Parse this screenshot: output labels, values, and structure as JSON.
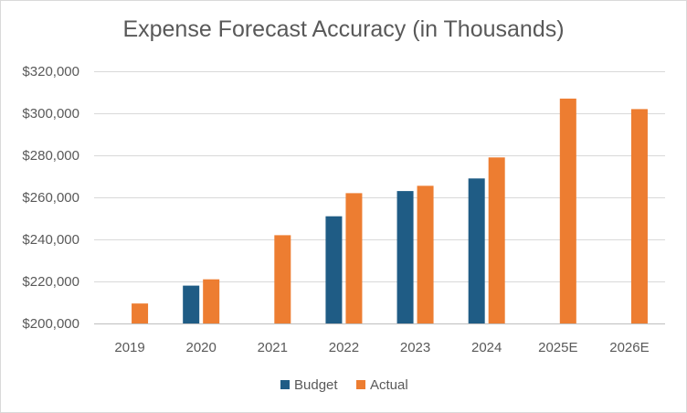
{
  "chart_data": {
    "type": "bar",
    "title": "Expense Forecast Accuracy (in Thousands)",
    "xlabel": "",
    "ylabel": "",
    "categories": [
      "2019",
      "2020",
      "2021",
      "2022",
      "2023",
      "2024",
      "2025E",
      "2026E"
    ],
    "series": [
      {
        "name": "Budget",
        "color": "#1f5c85",
        "values": [
          null,
          218000,
          null,
          251000,
          263000,
          269000,
          null,
          null
        ]
      },
      {
        "name": "Actual",
        "color": "#ed7d31",
        "values": [
          209500,
          221000,
          242000,
          262000,
          265500,
          279000,
          307000,
          302000
        ]
      }
    ],
    "ylim": [
      200000,
      320000
    ],
    "yticks": [
      200000,
      220000,
      240000,
      260000,
      280000,
      300000,
      320000
    ],
    "ytick_labels": [
      "$200,000",
      "$220,000",
      "$240,000",
      "$260,000",
      "$280,000",
      "$300,000",
      "$320,000"
    ],
    "grid": true,
    "legend_position": "bottom"
  }
}
